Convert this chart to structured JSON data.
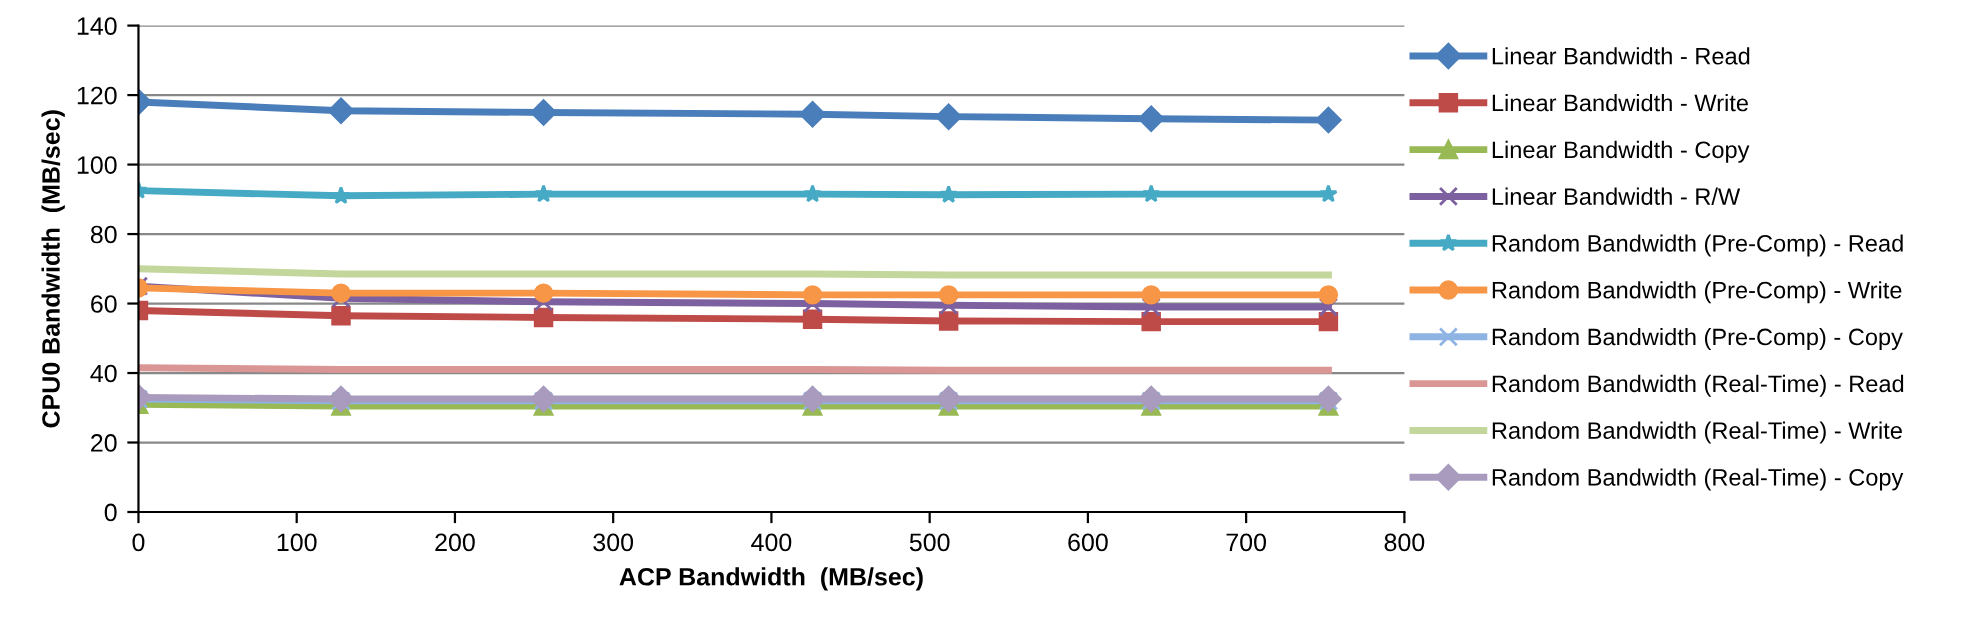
{
  "chart_data": {
    "type": "line",
    "xlabel": "ACP Bandwidth  (MB/sec)",
    "ylabel": "CPU0 Bandwidth  (MB/sec)",
    "x": [
      0,
      128,
      256,
      426,
      512,
      640,
      752
    ],
    "xlim": [
      0,
      800
    ],
    "xticks": [
      0,
      100,
      200,
      300,
      400,
      500,
      600,
      700,
      800
    ],
    "ylim": [
      0,
      140
    ],
    "yticks": [
      0,
      20,
      40,
      60,
      80,
      100,
      120,
      140
    ],
    "grid": "y",
    "legend": "right",
    "line_style": "solid",
    "series": [
      {
        "name": "Linear Bandwidth - Read",
        "color": "#4a7ebb",
        "marker": "diamond",
        "values": [
          118,
          115.5,
          115,
          114.5,
          113.8,
          113.2,
          112.8
        ]
      },
      {
        "name": "Linear Bandwidth - Write",
        "color": "#be4b48",
        "marker": "square",
        "values": [
          58,
          56.5,
          56,
          55.5,
          55,
          54.8,
          54.8
        ]
      },
      {
        "name": "Linear Bandwidth - Copy",
        "color": "#98b954",
        "marker": "triangle",
        "values": [
          31,
          30.5,
          30.5,
          30.5,
          30.5,
          30.5,
          30.5
        ]
      },
      {
        "name": "Linear Bandwidth - R/W",
        "color": "#7d60a0",
        "marker": "cross",
        "values": [
          65,
          61.5,
          60.5,
          60,
          59.5,
          59,
          59
        ]
      },
      {
        "name": "Random Bandwidth (Pre-Comp) - Read",
        "color": "#46aac5",
        "marker": "star",
        "values": [
          92.5,
          91,
          91.5,
          91.5,
          91.3,
          91.5,
          91.5
        ]
      },
      {
        "name": "Random Bandwidth (Pre-Comp) - Write",
        "color": "#f79646",
        "marker": "circle",
        "values": [
          64.5,
          63,
          63,
          62.5,
          62.5,
          62.5,
          62.5
        ]
      },
      {
        "name": "Random Bandwidth (Pre-Comp) - Copy",
        "color": "#8eb4e3",
        "marker": "cross",
        "values": [
          32.5,
          32,
          32,
          32,
          32,
          32,
          32
        ]
      },
      {
        "name": "Random Bandwidth (Real-Time) - Read",
        "color": "#d99694",
        "marker": "none",
        "values": [
          41.5,
          41,
          41,
          41,
          40.8,
          40.8,
          40.8
        ]
      },
      {
        "name": "Random Bandwidth (Real-Time) - Write",
        "color": "#c3d69b",
        "marker": "none",
        "values": [
          70,
          68.5,
          68.5,
          68.5,
          68.2,
          68.2,
          68.2
        ]
      },
      {
        "name": "Random Bandwidth (Real-Time) - Copy",
        "color": "#a99bbd",
        "marker": "diamond",
        "values": [
          33,
          32.5,
          32.5,
          32.5,
          32.5,
          32.5,
          32.5
        ]
      }
    ]
  }
}
